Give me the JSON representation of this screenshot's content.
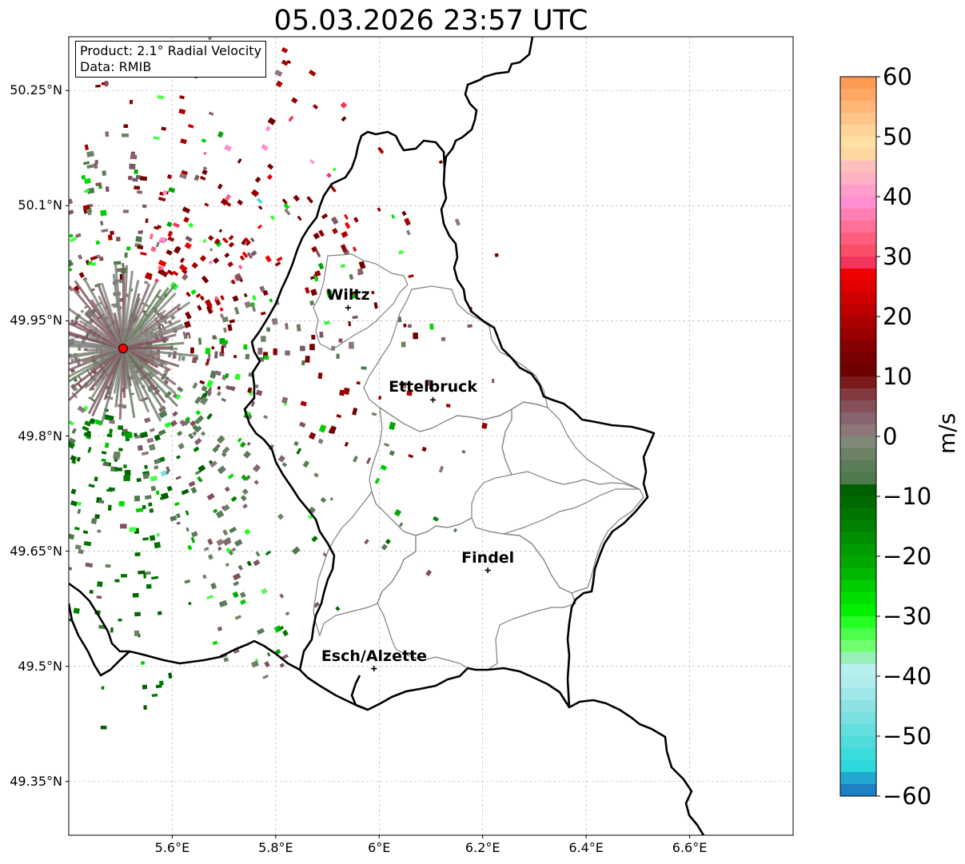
{
  "title": "05.03.2026 23:57 UTC",
  "info_box": {
    "product": "Product: 2.1° Radial Velocity",
    "data_source": "Data: RMIB"
  },
  "map": {
    "projection_lat_range": [
      49.28,
      50.32
    ],
    "projection_lon_range": [
      5.4,
      6.8
    ],
    "lat_ticks": [
      {
        "value": 50.25,
        "label": "50.25°N"
      },
      {
        "value": 50.1,
        "label": "50.1°N"
      },
      {
        "value": 49.95,
        "label": "49.95°N"
      },
      {
        "value": 49.8,
        "label": "49.8°N"
      },
      {
        "value": 49.65,
        "label": "49.65°N"
      },
      {
        "value": 49.5,
        "label": "49.5°N"
      },
      {
        "value": 49.35,
        "label": "49.35°N"
      }
    ],
    "lon_ticks": [
      {
        "value": 5.6,
        "label": "5.6°E"
      },
      {
        "value": 5.8,
        "label": "5.8°E"
      },
      {
        "value": 6.0,
        "label": "6°E"
      },
      {
        "value": 6.2,
        "label": "6.2°E"
      },
      {
        "value": 6.4,
        "label": "6.4°E"
      },
      {
        "value": 6.6,
        "label": "6.6°E"
      }
    ],
    "gridlines": true,
    "radar_site": {
      "lon": 5.505,
      "lat": 49.914,
      "color": "#ff0000"
    },
    "cities": [
      {
        "name": "Wiltz",
        "lon": 5.94,
        "lat": 49.967
      },
      {
        "name": "Ettelbruck",
        "lon": 6.104,
        "lat": 49.847
      },
      {
        "name": "Findel",
        "lon": 6.21,
        "lat": 49.625
      },
      {
        "name": "Esch/Alzette",
        "lon": 5.99,
        "lat": 49.497
      }
    ]
  },
  "colorbar": {
    "units": "m/s",
    "range": [
      -60,
      60
    ],
    "ticks": [
      {
        "value": 60,
        "label": "60"
      },
      {
        "value": 50,
        "label": "50"
      },
      {
        "value": 40,
        "label": "40"
      },
      {
        "value": 30,
        "label": "30"
      },
      {
        "value": 20,
        "label": "20"
      },
      {
        "value": 10,
        "label": "10"
      },
      {
        "value": 0,
        "label": "0"
      },
      {
        "value": -10,
        "label": "−10"
      },
      {
        "value": -20,
        "label": "−20"
      },
      {
        "value": -30,
        "label": "−30"
      },
      {
        "value": -40,
        "label": "−40"
      },
      {
        "value": -50,
        "label": "−50"
      },
      {
        "value": -60,
        "label": "−60"
      }
    ],
    "colors_top_to_bottom": [
      "#ff9a52",
      "#ffa865",
      "#ffb676",
      "#ffc588",
      "#ffd39a",
      "#ffe0a4",
      "#fdd6a2",
      "#ffbfbf",
      "#ffb0c2",
      "#ff9ecd",
      "#ff8fd0",
      "#ff7fb2",
      "#ff6f96",
      "#ff5e7e",
      "#fa4e66",
      "#f4345d",
      "#f00000",
      "#e10000",
      "#d00000",
      "#bc0000",
      "#aa0000",
      "#980000",
      "#850000",
      "#760000",
      "#6e0000",
      "#7a1a1a",
      "#823a3e",
      "#84505a",
      "#886470",
      "#8c7878",
      "#808878",
      "#6c8264",
      "#5a7c58",
      "#4e7a4c",
      "#006000",
      "#006a00",
      "#007600",
      "#008200",
      "#008f00",
      "#009c00",
      "#00a800",
      "#00b800",
      "#00cc00",
      "#00e000",
      "#00f000",
      "#24ff24",
      "#4cff4c",
      "#70ff70",
      "#98f0b8",
      "#b8f0f0",
      "#b0ecec",
      "#9ee8e8",
      "#8ce2e2",
      "#78e0e0",
      "#64dede",
      "#50dcdc",
      "#3cdcdc",
      "#2cd8dc",
      "#20a8d0",
      "#1f80c8"
    ]
  }
}
